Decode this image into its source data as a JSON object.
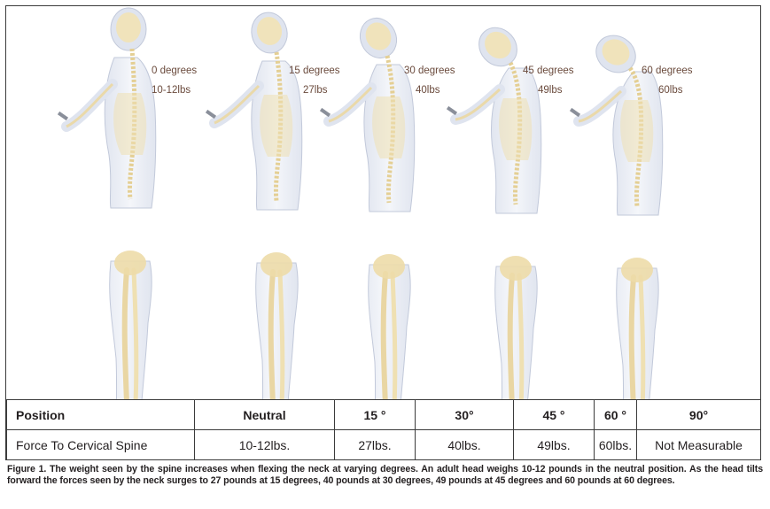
{
  "figures": [
    {
      "angle_label": "0 degrees",
      "force_label": "10-12lbs"
    },
    {
      "angle_label": "15 degrees",
      "force_label": "27lbs"
    },
    {
      "angle_label": "30 degrees",
      "force_label": "40lbs"
    },
    {
      "angle_label": "45 degrees",
      "force_label": "49lbs"
    },
    {
      "angle_label": "60 degrees",
      "force_label": "60lbs"
    }
  ],
  "table": {
    "header": [
      "Position",
      "Neutral",
      "15 °",
      "30°",
      "45 °",
      "60 °",
      "90°"
    ],
    "row": [
      "Force To Cervical Spine",
      "10-12lbs.",
      "27lbs.",
      "40lbs.",
      "49lbs.",
      "60lbs.",
      "Not Measurable"
    ]
  },
  "caption": "Figure 1. The weight seen by the spine increases when flexing the neck at varying degrees. An adult head weighs 10-12 pounds in the neutral position. As the head tilts forward the forces seen by the neck surges to 27 pounds at 15 degrees, 40 pounds at 30 degrees, 49 pounds at 45 degrees and 60 pounds at 60 degrees.",
  "colors": {
    "body": "#dfe4ef",
    "bone": "#efe1b4",
    "label": "#6a4a3c",
    "border": "#3b3b3b"
  }
}
